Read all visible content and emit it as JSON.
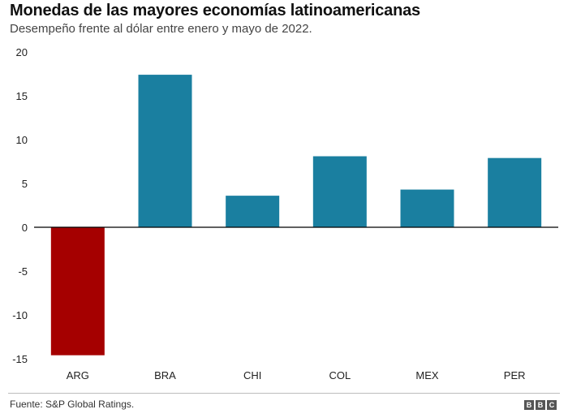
{
  "header": {
    "title": "Monedas de las mayores economías latinoamericanas",
    "subtitle": "Desempeño frente al dólar entre enero y mayo de 2022."
  },
  "footer": {
    "source": "Fuente: S&P Global Ratings.",
    "logo_letters": [
      "B",
      "B",
      "C"
    ]
  },
  "colors": {
    "positive": "#1a7fa0",
    "negative": "#a50000",
    "axis": "#000000",
    "text": "#222222"
  },
  "chart_data": {
    "type": "bar",
    "title": "Monedas de las mayores economías latinoamericanas",
    "subtitle": "Desempeño frente al dólar entre enero y mayo de 2022.",
    "categories": [
      "ARG",
      "BRA",
      "CHI",
      "COL",
      "MEX",
      "PER"
    ],
    "values": [
      -14.6,
      17.4,
      3.6,
      8.1,
      4.3,
      7.9
    ],
    "xlabel": "",
    "ylabel": "",
    "ylim": [
      -15,
      20
    ],
    "yticks": [
      20,
      15,
      10,
      5,
      0,
      -5,
      -10,
      -15
    ],
    "ytick_labels": [
      "20",
      "15",
      "10",
      "5",
      "0",
      "-5",
      "-10",
      "-15"
    ],
    "grid": false,
    "legend": "none"
  }
}
